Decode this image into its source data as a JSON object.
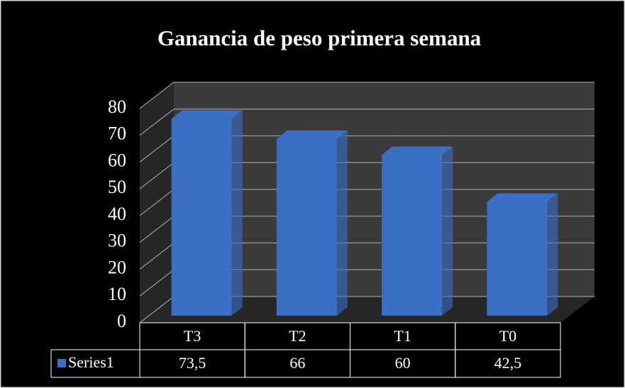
{
  "chart_data": {
    "type": "bar3d",
    "title": "Ganancia de peso primera semana",
    "categories": [
      "T3",
      "T2",
      "T1",
      "T0"
    ],
    "series": [
      {
        "name": "Series1",
        "color": "#3a6fc6",
        "values": [
          73.5,
          66,
          60,
          42.5
        ],
        "value_labels": [
          "73,5",
          "66",
          "60",
          "42,5"
        ]
      }
    ],
    "ylim": [
      0,
      80
    ],
    "yticks": [
      0,
      10,
      20,
      30,
      40,
      50,
      60,
      70,
      80
    ],
    "grid": true,
    "legend": "data-table"
  }
}
